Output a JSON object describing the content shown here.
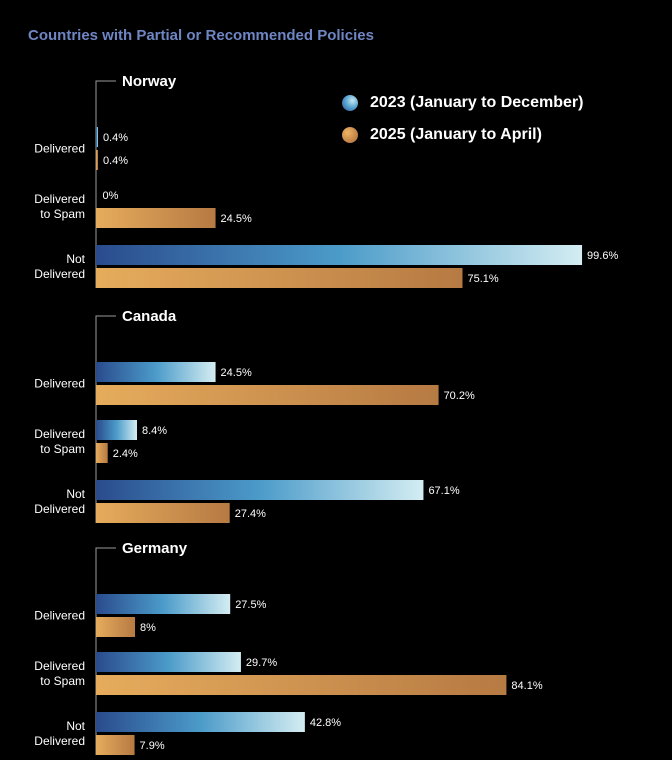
{
  "colors": {
    "background": "#000000",
    "title": "#6f86c4",
    "series_2023_gradient": [
      "#2a4b8d",
      "#4b9bc9",
      "#d4edf2"
    ],
    "series_2025_gradient": [
      "#e6ac5c",
      "#b67a43"
    ]
  },
  "chart_data": {
    "type": "bar",
    "orientation": "horizontal",
    "title": "Countries with Partial or Recommended Policies",
    "xlim": [
      0,
      100
    ],
    "grid": false,
    "legend_placement": "top-right",
    "series": [
      {
        "name": "2023 (January to December)"
      },
      {
        "name": "2025 (January to April)"
      }
    ],
    "groups": [
      {
        "country": "Norway",
        "rows": [
          {
            "category": [
              "Delivered"
            ],
            "values": [
              0.4,
              0.4
            ],
            "labels": [
              "0.4%",
              "0.4%"
            ]
          },
          {
            "category": [
              "Delivered",
              "to Spam"
            ],
            "values": [
              0,
              24.5
            ],
            "labels": [
              "0%",
              "24.5%"
            ]
          },
          {
            "category": [
              "Not",
              "Delivered"
            ],
            "values": [
              99.6,
              75.1
            ],
            "labels": [
              "99.6%",
              "75.1%"
            ]
          }
        ]
      },
      {
        "country": "Canada",
        "rows": [
          {
            "category": [
              "Delivered"
            ],
            "values": [
              24.5,
              70.2
            ],
            "labels": [
              "24.5%",
              "70.2%"
            ]
          },
          {
            "category": [
              "Delivered",
              "to Spam"
            ],
            "values": [
              8.4,
              2.4
            ],
            "labels": [
              "8.4%",
              "2.4%"
            ]
          },
          {
            "category": [
              "Not",
              "Delivered"
            ],
            "values": [
              67.1,
              27.4
            ],
            "labels": [
              "67.1%",
              "27.4%"
            ]
          }
        ]
      },
      {
        "country": "Germany",
        "rows": [
          {
            "category": [
              "Delivered"
            ],
            "values": [
              27.5,
              8
            ],
            "labels": [
              "27.5%",
              "8%"
            ]
          },
          {
            "category": [
              "Delivered",
              "to Spam"
            ],
            "values": [
              29.7,
              84.1
            ],
            "labels": [
              "29.7%",
              "84.1%"
            ]
          },
          {
            "category": [
              "Not",
              "Delivered"
            ],
            "values": [
              42.8,
              7.9
            ],
            "labels": [
              "42.8%",
              "7.9%"
            ]
          }
        ]
      }
    ]
  }
}
